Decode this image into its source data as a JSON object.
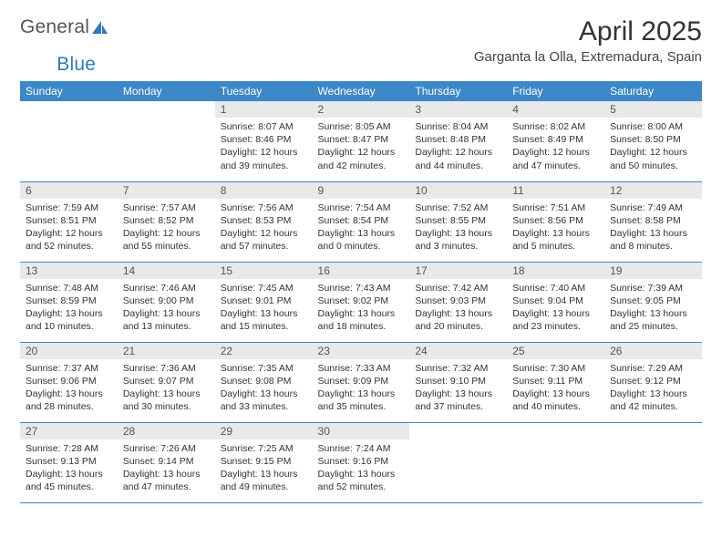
{
  "logo": {
    "text1": "General",
    "text2": "Blue"
  },
  "title": "April 2025",
  "location": "Garganta la Olla, Extremadura, Spain",
  "colors": {
    "header_bg": "#3c87c7",
    "header_fg": "#ffffff",
    "daynum_bg": "#e9e9e9",
    "row_border": "#3c87c7",
    "logo_blue": "#2f78b8"
  },
  "weekdays": [
    "Sunday",
    "Monday",
    "Tuesday",
    "Wednesday",
    "Thursday",
    "Friday",
    "Saturday"
  ],
  "weeks": [
    [
      {
        "n": "",
        "sr": "",
        "ss": "",
        "dl": "",
        "empty": true
      },
      {
        "n": "",
        "sr": "",
        "ss": "",
        "dl": "",
        "empty": true
      },
      {
        "n": "1",
        "sr": "Sunrise: 8:07 AM",
        "ss": "Sunset: 8:46 PM",
        "dl": "Daylight: 12 hours and 39 minutes."
      },
      {
        "n": "2",
        "sr": "Sunrise: 8:05 AM",
        "ss": "Sunset: 8:47 PM",
        "dl": "Daylight: 12 hours and 42 minutes."
      },
      {
        "n": "3",
        "sr": "Sunrise: 8:04 AM",
        "ss": "Sunset: 8:48 PM",
        "dl": "Daylight: 12 hours and 44 minutes."
      },
      {
        "n": "4",
        "sr": "Sunrise: 8:02 AM",
        "ss": "Sunset: 8:49 PM",
        "dl": "Daylight: 12 hours and 47 minutes."
      },
      {
        "n": "5",
        "sr": "Sunrise: 8:00 AM",
        "ss": "Sunset: 8:50 PM",
        "dl": "Daylight: 12 hours and 50 minutes."
      }
    ],
    [
      {
        "n": "6",
        "sr": "Sunrise: 7:59 AM",
        "ss": "Sunset: 8:51 PM",
        "dl": "Daylight: 12 hours and 52 minutes."
      },
      {
        "n": "7",
        "sr": "Sunrise: 7:57 AM",
        "ss": "Sunset: 8:52 PM",
        "dl": "Daylight: 12 hours and 55 minutes."
      },
      {
        "n": "8",
        "sr": "Sunrise: 7:56 AM",
        "ss": "Sunset: 8:53 PM",
        "dl": "Daylight: 12 hours and 57 minutes."
      },
      {
        "n": "9",
        "sr": "Sunrise: 7:54 AM",
        "ss": "Sunset: 8:54 PM",
        "dl": "Daylight: 13 hours and 0 minutes."
      },
      {
        "n": "10",
        "sr": "Sunrise: 7:52 AM",
        "ss": "Sunset: 8:55 PM",
        "dl": "Daylight: 13 hours and 3 minutes."
      },
      {
        "n": "11",
        "sr": "Sunrise: 7:51 AM",
        "ss": "Sunset: 8:56 PM",
        "dl": "Daylight: 13 hours and 5 minutes."
      },
      {
        "n": "12",
        "sr": "Sunrise: 7:49 AM",
        "ss": "Sunset: 8:58 PM",
        "dl": "Daylight: 13 hours and 8 minutes."
      }
    ],
    [
      {
        "n": "13",
        "sr": "Sunrise: 7:48 AM",
        "ss": "Sunset: 8:59 PM",
        "dl": "Daylight: 13 hours and 10 minutes."
      },
      {
        "n": "14",
        "sr": "Sunrise: 7:46 AM",
        "ss": "Sunset: 9:00 PM",
        "dl": "Daylight: 13 hours and 13 minutes."
      },
      {
        "n": "15",
        "sr": "Sunrise: 7:45 AM",
        "ss": "Sunset: 9:01 PM",
        "dl": "Daylight: 13 hours and 15 minutes."
      },
      {
        "n": "16",
        "sr": "Sunrise: 7:43 AM",
        "ss": "Sunset: 9:02 PM",
        "dl": "Daylight: 13 hours and 18 minutes."
      },
      {
        "n": "17",
        "sr": "Sunrise: 7:42 AM",
        "ss": "Sunset: 9:03 PM",
        "dl": "Daylight: 13 hours and 20 minutes."
      },
      {
        "n": "18",
        "sr": "Sunrise: 7:40 AM",
        "ss": "Sunset: 9:04 PM",
        "dl": "Daylight: 13 hours and 23 minutes."
      },
      {
        "n": "19",
        "sr": "Sunrise: 7:39 AM",
        "ss": "Sunset: 9:05 PM",
        "dl": "Daylight: 13 hours and 25 minutes."
      }
    ],
    [
      {
        "n": "20",
        "sr": "Sunrise: 7:37 AM",
        "ss": "Sunset: 9:06 PM",
        "dl": "Daylight: 13 hours and 28 minutes."
      },
      {
        "n": "21",
        "sr": "Sunrise: 7:36 AM",
        "ss": "Sunset: 9:07 PM",
        "dl": "Daylight: 13 hours and 30 minutes."
      },
      {
        "n": "22",
        "sr": "Sunrise: 7:35 AM",
        "ss": "Sunset: 9:08 PM",
        "dl": "Daylight: 13 hours and 33 minutes."
      },
      {
        "n": "23",
        "sr": "Sunrise: 7:33 AM",
        "ss": "Sunset: 9:09 PM",
        "dl": "Daylight: 13 hours and 35 minutes."
      },
      {
        "n": "24",
        "sr": "Sunrise: 7:32 AM",
        "ss": "Sunset: 9:10 PM",
        "dl": "Daylight: 13 hours and 37 minutes."
      },
      {
        "n": "25",
        "sr": "Sunrise: 7:30 AM",
        "ss": "Sunset: 9:11 PM",
        "dl": "Daylight: 13 hours and 40 minutes."
      },
      {
        "n": "26",
        "sr": "Sunrise: 7:29 AM",
        "ss": "Sunset: 9:12 PM",
        "dl": "Daylight: 13 hours and 42 minutes."
      }
    ],
    [
      {
        "n": "27",
        "sr": "Sunrise: 7:28 AM",
        "ss": "Sunset: 9:13 PM",
        "dl": "Daylight: 13 hours and 45 minutes."
      },
      {
        "n": "28",
        "sr": "Sunrise: 7:26 AM",
        "ss": "Sunset: 9:14 PM",
        "dl": "Daylight: 13 hours and 47 minutes."
      },
      {
        "n": "29",
        "sr": "Sunrise: 7:25 AM",
        "ss": "Sunset: 9:15 PM",
        "dl": "Daylight: 13 hours and 49 minutes."
      },
      {
        "n": "30",
        "sr": "Sunrise: 7:24 AM",
        "ss": "Sunset: 9:16 PM",
        "dl": "Daylight: 13 hours and 52 minutes."
      },
      {
        "n": "",
        "sr": "",
        "ss": "",
        "dl": "",
        "empty": true
      },
      {
        "n": "",
        "sr": "",
        "ss": "",
        "dl": "",
        "empty": true
      },
      {
        "n": "",
        "sr": "",
        "ss": "",
        "dl": "",
        "empty": true
      }
    ]
  ]
}
